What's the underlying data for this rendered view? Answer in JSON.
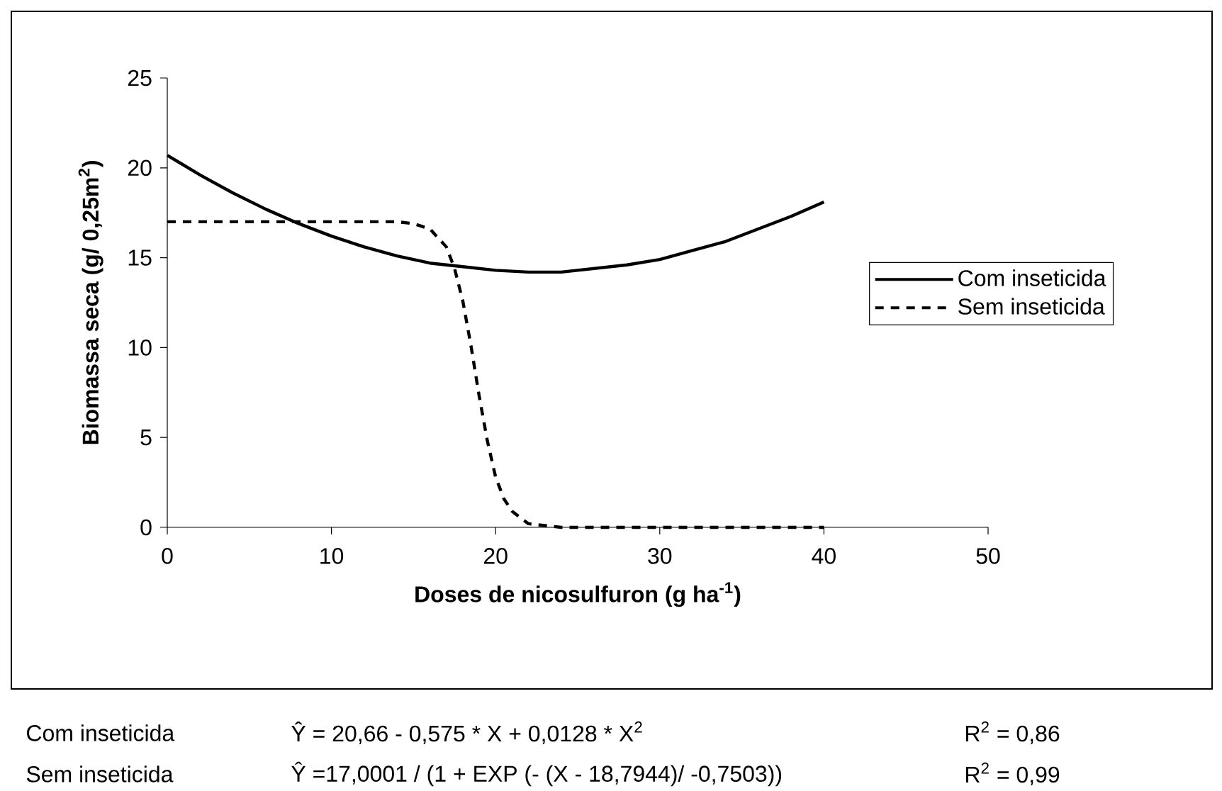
{
  "chart_data": {
    "type": "line",
    "xlabel": "Doses de nicosulfuron (g ha$^{-1}$)",
    "ylabel": "Biomassa seca (g/ 0,25m$^{2}$)",
    "xlim": [
      0,
      50
    ],
    "ylim": [
      0,
      25
    ],
    "xticks": [
      0,
      10,
      20,
      30,
      40,
      50
    ],
    "yticks": [
      0,
      5,
      10,
      15,
      20,
      25
    ],
    "legend": "right",
    "series": [
      {
        "name": "Com inseticida",
        "color": "#000000",
        "line_style": "solid",
        "x": [
          0,
          2,
          4,
          6,
          8,
          10,
          12,
          14,
          16,
          18,
          20,
          22,
          24,
          26,
          28,
          30,
          32,
          34,
          36,
          38,
          40
        ],
        "values": [
          20.7,
          19.6,
          18.6,
          17.7,
          16.9,
          16.2,
          15.6,
          15.1,
          14.7,
          14.5,
          14.3,
          14.2,
          14.2,
          14.4,
          14.6,
          14.9,
          15.4,
          15.9,
          16.6,
          17.3,
          18.1
        ]
      },
      {
        "name": "Sem inseticida",
        "color": "#000000",
        "line_style": "dashed",
        "x": [
          0,
          5,
          10,
          14,
          15,
          16,
          17,
          17.5,
          18,
          18.5,
          19,
          19.5,
          20,
          20.5,
          21,
          22,
          23,
          24,
          30,
          40
        ],
        "values": [
          17.0,
          17.0,
          17.0,
          17.0,
          16.9,
          16.6,
          15.6,
          14.4,
          12.6,
          10.1,
          7.3,
          4.8,
          2.8,
          1.6,
          0.9,
          0.2,
          0.1,
          0.0,
          0.0,
          0.0
        ]
      }
    ],
    "annotations": [
      "Com inseticida",
      "Ŷ  = 20,66 - 0,575 * X + 0,0128 * X$^{2}$",
      "R$^{2}$ = 0,86",
      "Sem inseticida",
      "Ŷ  =17,0001 / (1 + EXP (- (X - 18,7944)/ -0,7503))",
      "R$^{2}$ = 0,99"
    ]
  }
}
